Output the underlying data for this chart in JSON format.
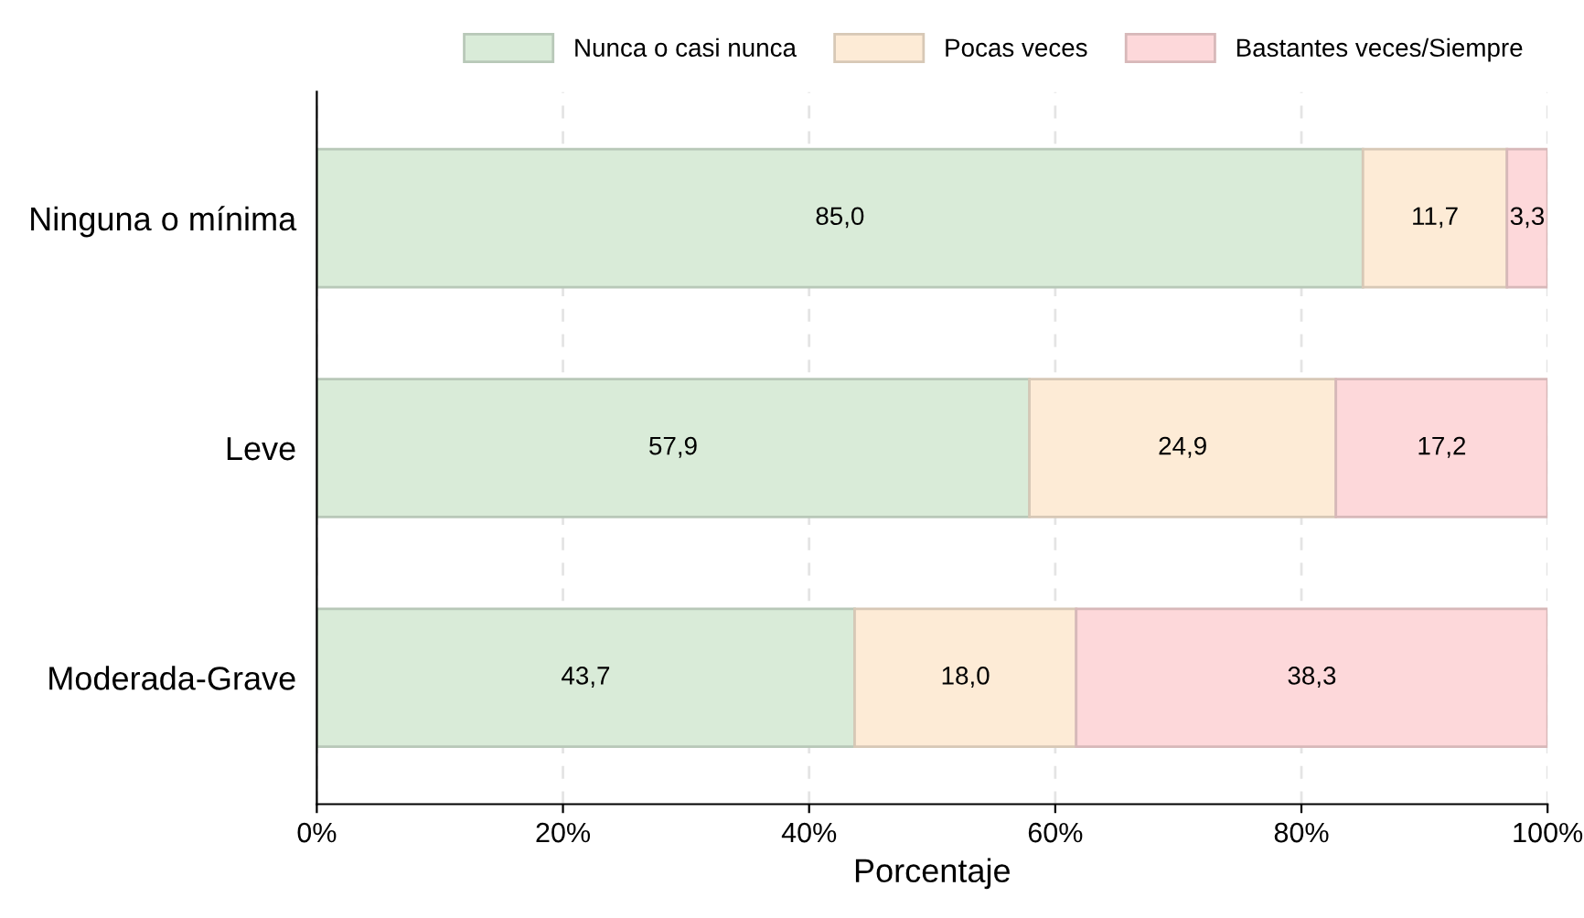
{
  "chart_data": {
    "type": "bar",
    "orientation": "horizontal",
    "stacked": true,
    "categories": [
      "Ninguna o mínima",
      "Leve",
      "Moderada-Grave"
    ],
    "series": [
      {
        "name": "Nunca o casi nunca",
        "color": "#d9ebd8",
        "values": [
          85.0,
          57.9,
          43.7
        ],
        "value_labels": [
          "85,0",
          "57,9",
          "43,7"
        ]
      },
      {
        "name": "Pocas veces",
        "color": "#fdebd6",
        "values": [
          11.7,
          24.9,
          18.0
        ],
        "value_labels": [
          "11,7",
          "24,9",
          "18,0"
        ]
      },
      {
        "name": "Bastantes veces/Siempre",
        "color": "#fdd8da",
        "values": [
          3.3,
          17.2,
          38.3
        ],
        "value_labels": [
          "3,3",
          "17,2",
          "38,3"
        ]
      }
    ],
    "xlim": [
      0,
      100
    ],
    "xticks": [
      {
        "value": 0,
        "label": "0%"
      },
      {
        "value": 20,
        "label": "20%"
      },
      {
        "value": 40,
        "label": "40%"
      },
      {
        "value": 60,
        "label": "60%"
      },
      {
        "value": 80,
        "label": "80%"
      },
      {
        "value": 100,
        "label": "100%"
      }
    ],
    "xlabel": "Porcentaje",
    "grid": "x",
    "legend": "top"
  }
}
